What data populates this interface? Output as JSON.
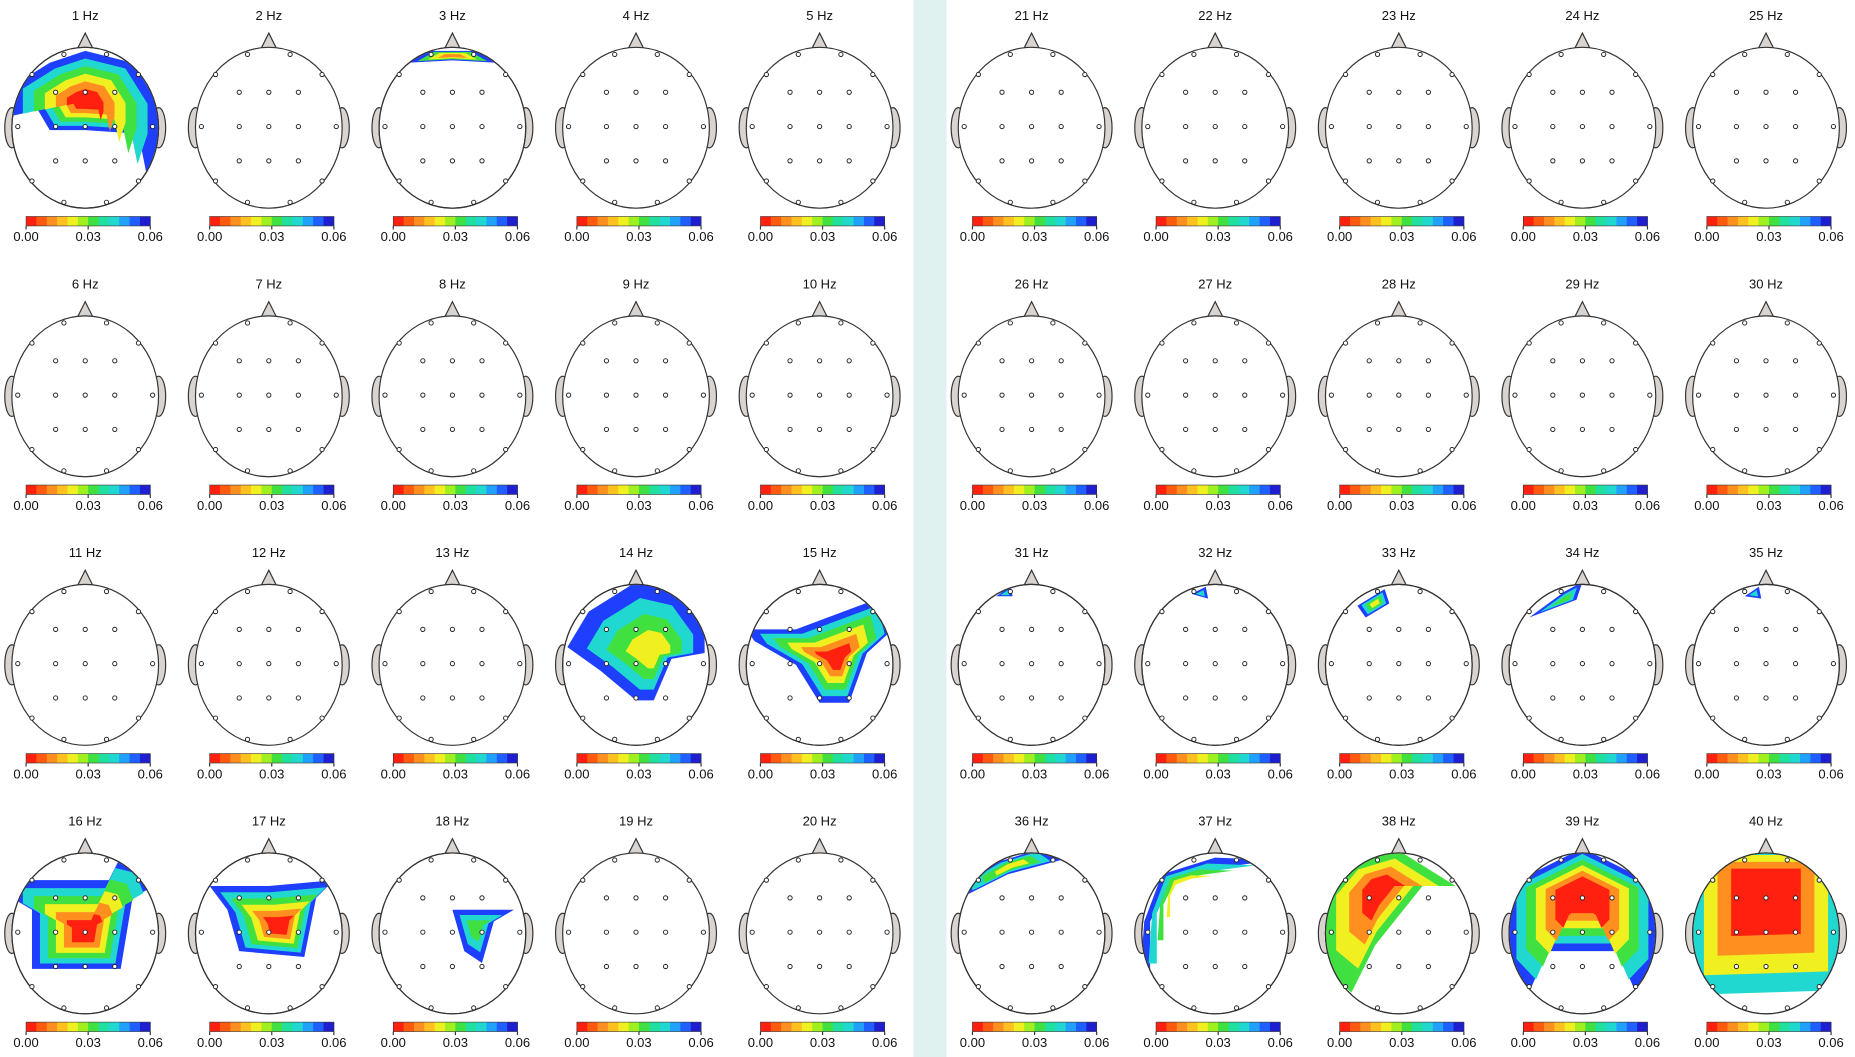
{
  "panels": [
    "1 Hz",
    "2 Hz",
    "3 Hz",
    "4 Hz",
    "5 Hz",
    "6 Hz",
    "7 Hz",
    "8 Hz",
    "9 Hz",
    "10 Hz",
    "11 Hz",
    "12 Hz",
    "13 Hz",
    "14 Hz",
    "15 Hz",
    "16 Hz",
    "17 Hz",
    "18 Hz",
    "19 Hz",
    "20 Hz",
    "21 Hz",
    "22 Hz",
    "23 Hz",
    "24 Hz",
    "25 Hz",
    "26 Hz",
    "27 Hz",
    "28 Hz",
    "29 Hz",
    "30 Hz",
    "31 Hz",
    "32 Hz",
    "33 Hz",
    "34 Hz",
    "35 Hz",
    "36 Hz",
    "37 Hz",
    "38 Hz",
    "39 Hz",
    "40 Hz"
  ],
  "colorbar_ticks": [
    "0.00",
    "0.03",
    "0.06"
  ]
}
